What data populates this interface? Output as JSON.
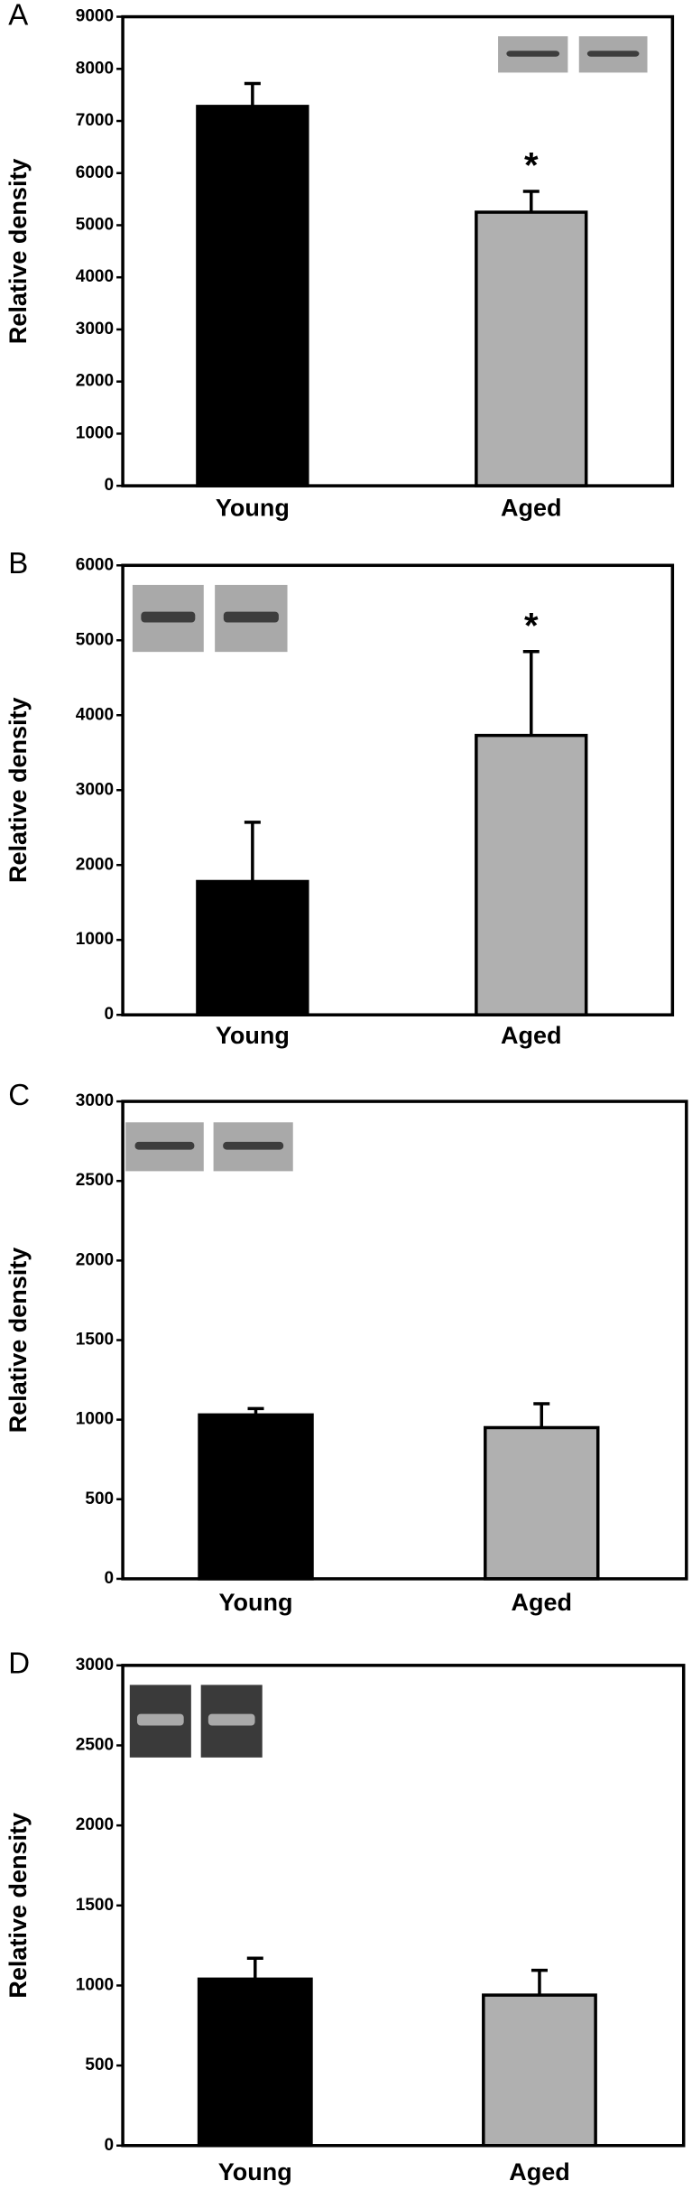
{
  "chart_data": [
    {
      "type": "bar",
      "panel": "A",
      "ylabel": "Relative density",
      "categories": [
        "Young",
        "Aged"
      ],
      "values": [
        7280,
        5250
      ],
      "errors": [
        440,
        400
      ],
      "colors": [
        "#000000",
        "#b0b0b0"
      ],
      "ylim": [
        0,
        9000
      ],
      "yticks": [
        0,
        1000,
        2000,
        3000,
        4000,
        5000,
        6000,
        7000,
        8000,
        9000
      ],
      "annotations": [
        {
          "text": "*",
          "x": "Aged"
        }
      ]
    },
    {
      "type": "bar",
      "panel": "B",
      "ylabel": "Relative density",
      "categories": [
        "Young",
        "Aged"
      ],
      "values": [
        1780,
        3730
      ],
      "errors": [
        790,
        1120
      ],
      "colors": [
        "#000000",
        "#b0b0b0"
      ],
      "ylim": [
        0,
        6000
      ],
      "yticks": [
        0,
        1000,
        2000,
        3000,
        4000,
        5000,
        6000
      ],
      "annotations": [
        {
          "text": "*",
          "x": "Aged"
        }
      ]
    },
    {
      "type": "bar",
      "panel": "C",
      "ylabel": "Relative density",
      "categories": [
        "Young",
        "Aged"
      ],
      "values": [
        1030,
        950
      ],
      "errors": [
        40,
        150
      ],
      "colors": [
        "#000000",
        "#b0b0b0"
      ],
      "ylim": [
        0,
        3000
      ],
      "yticks": [
        0,
        500,
        1000,
        1500,
        2000,
        2500,
        3000
      ]
    },
    {
      "type": "bar",
      "panel": "D",
      "ylabel": "Relative density",
      "categories": [
        "Young",
        "Aged"
      ],
      "values": [
        1040,
        940
      ],
      "errors": [
        130,
        155
      ],
      "colors": [
        "#000000",
        "#b0b0b0"
      ],
      "ylim": [
        0,
        3000
      ],
      "yticks": [
        0,
        500,
        1000,
        1500,
        2000,
        2500,
        3000
      ]
    }
  ]
}
